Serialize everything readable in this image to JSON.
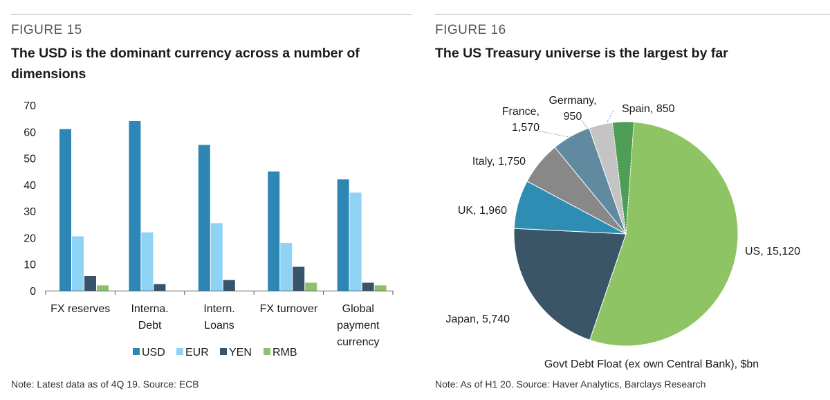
{
  "left": {
    "figure_label": "FIGURE 15",
    "title": "The USD is the dominant currency across a number of dimensions",
    "note": "Note: Latest data as of 4Q 19. Source: ECB"
  },
  "right": {
    "figure_label": "FIGURE 16",
    "title": "The US Treasury universe is the largest by far",
    "note": "Note: As of H1 20. Source: Haver Analytics, Barclays Research"
  },
  "chart_data": [
    {
      "type": "bar",
      "categories": [
        [
          "FX reserves"
        ],
        [
          "Interna.",
          "Debt"
        ],
        [
          "Intern.",
          "Loans"
        ],
        [
          "FX turnover"
        ],
        [
          "Global",
          "payment",
          "currency"
        ]
      ],
      "series": [
        {
          "name": "USD",
          "color": "#2e86b5",
          "values": [
            61,
            64,
            55,
            45,
            42
          ]
        },
        {
          "name": "EUR",
          "color": "#8fd3f4",
          "values": [
            20.5,
            22,
            25.5,
            18,
            37
          ]
        },
        {
          "name": "YEN",
          "color": "#37546a",
          "values": [
            5.5,
            2.5,
            4,
            9,
            3
          ]
        },
        {
          "name": "RMB",
          "color": "#8dc06a",
          "values": [
            2,
            0,
            0,
            3,
            2
          ]
        }
      ],
      "yticks": [
        0,
        10,
        20,
        30,
        40,
        50,
        60,
        70
      ],
      "ylim": [
        0,
        70
      ],
      "legend_position": "bottom",
      "grid": false
    },
    {
      "type": "pie",
      "slices": [
        {
          "label": "US, 15,120",
          "value": 15120,
          "color": "#8fc464"
        },
        {
          "label": "Japan, 5,740",
          "value": 5740,
          "color": "#3a5468"
        },
        {
          "label": "UK, 1,960",
          "value": 1960,
          "color": "#2f8db3"
        },
        {
          "label": "Italy, 1,750",
          "value": 1750,
          "color": "#888888"
        },
        {
          "label": "France, 1,570",
          "value": 1570,
          "color": "#5f8aa0"
        },
        {
          "label": "Germany, 950",
          "value": 950,
          "color": "#c4c4c4"
        },
        {
          "label": "Spain, 850",
          "value": 850,
          "color": "#4e9e55"
        }
      ],
      "xlabel": "Govt Debt Float (ex own Central Bank), $bn"
    }
  ]
}
